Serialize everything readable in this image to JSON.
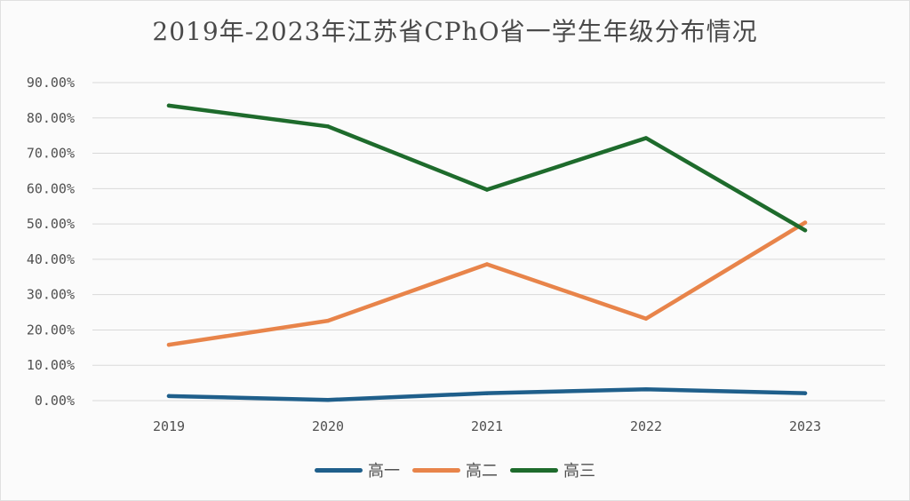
{
  "chart_data": {
    "type": "line",
    "title": "2019年-2023年江苏省CPhO省一学生年级分布情况",
    "categories": [
      "2019",
      "2020",
      "2021",
      "2022",
      "2023"
    ],
    "y_ticks": [
      "0.00%",
      "10.00%",
      "20.00%",
      "30.00%",
      "40.00%",
      "50.00%",
      "60.00%",
      "70.00%",
      "80.00%",
      "90.00%"
    ],
    "ylim": [
      0,
      90
    ],
    "grid": true,
    "legend_position": "bottom",
    "series": [
      {
        "name": "高一",
        "color": "#1f5f8b",
        "values": [
          1.3,
          0.2,
          2.1,
          3.2,
          2.1
        ]
      },
      {
        "name": "高二",
        "color": "#e8844a",
        "values": [
          15.8,
          22.6,
          38.6,
          23.2,
          50.4
        ]
      },
      {
        "name": "高三",
        "color": "#1e6b2c",
        "values": [
          83.5,
          77.6,
          59.7,
          74.3,
          48.2
        ]
      }
    ]
  }
}
